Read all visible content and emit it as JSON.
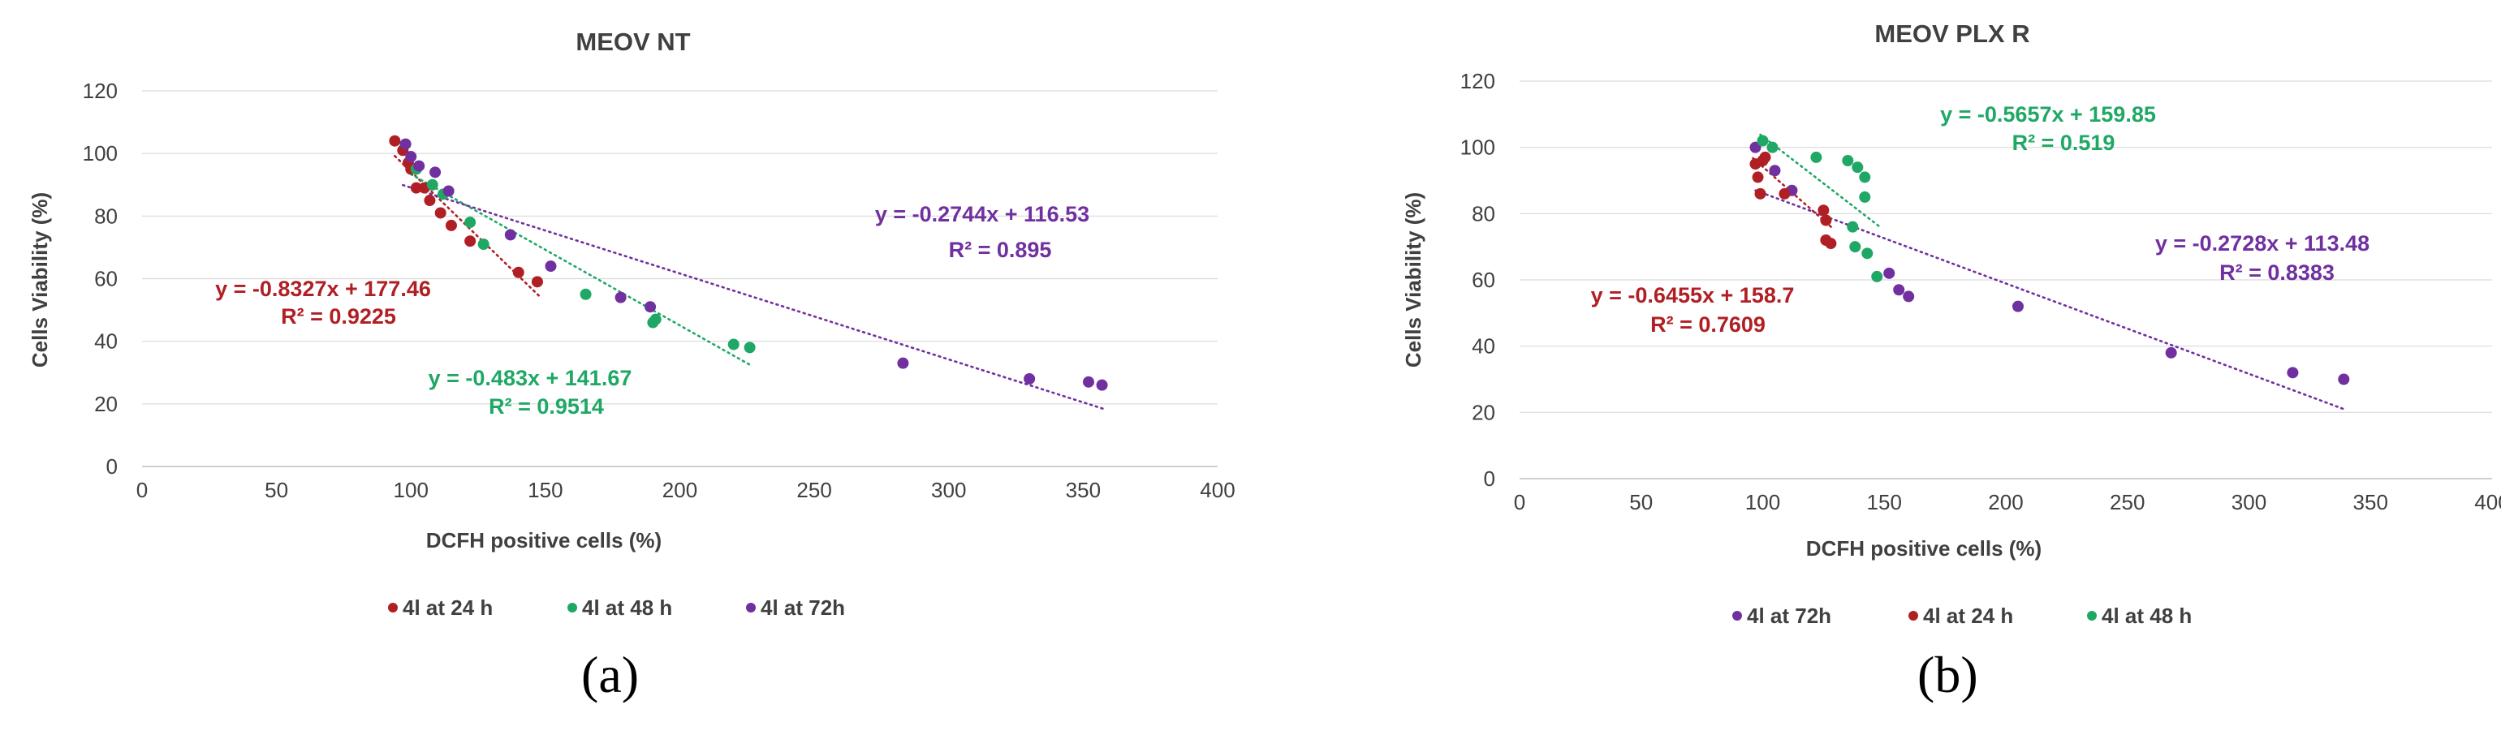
{
  "colors": {
    "red": "#B01F24",
    "green": "#1FA865",
    "purple": "#7030A0",
    "axis": "#BFBFBF",
    "grid": "#D9D9D9",
    "text": "#404040"
  },
  "chart_data": [
    {
      "type": "scatter",
      "title": "MEOV NT",
      "xlabel": "DCFH positive cells (%)",
      "ylabel": "Cells Viability (%)",
      "xlim": [
        0,
        400
      ],
      "ylim": [
        0,
        120
      ],
      "xticks": [
        "0",
        "50",
        "100",
        "150",
        "200",
        "250",
        "300",
        "350",
        "400"
      ],
      "yticks": [
        "0",
        "20",
        "40",
        "60",
        "80",
        "100",
        "120"
      ],
      "panel_label": "(a)",
      "series": [
        {
          "name": "4l at 24 h",
          "color_key": "red",
          "points": [
            [
              94,
              104
            ],
            [
              97,
              101
            ],
            [
              99,
              97
            ],
            [
              100,
              95
            ],
            [
              102,
              89
            ],
            [
              105,
              89
            ],
            [
              107,
              85
            ],
            [
              111,
              81
            ],
            [
              115,
              77
            ],
            [
              122,
              72
            ],
            [
              140,
              62
            ],
            [
              147,
              59
            ]
          ],
          "trendline": {
            "slope": -0.8327,
            "intercept": 177.46,
            "x_range": [
              94,
              148
            ]
          },
          "equation": "y = -0.8327x + 177.46",
          "r2": "R² = 0.9225"
        },
        {
          "name": "4l at 48 h",
          "color_key": "green",
          "points": [
            [
              102,
              95
            ],
            [
              108,
              90
            ],
            [
              112,
              87
            ],
            [
              122,
              78
            ],
            [
              127,
              71
            ],
            [
              165,
              55
            ],
            [
              190,
              46
            ],
            [
              191,
              47
            ],
            [
              220,
              39
            ],
            [
              226,
              38
            ]
          ],
          "trendline": {
            "slope": -0.483,
            "intercept": 141.67,
            "x_range": [
              100,
              227
            ]
          },
          "equation": "y = -0.483x + 141.67",
          "r2": "R² = 0.9514"
        },
        {
          "name": "4l at 72h",
          "color_key": "purple",
          "points": [
            [
              98,
              103
            ],
            [
              100,
              99
            ],
            [
              103,
              96
            ],
            [
              109,
              94
            ],
            [
              114,
              88
            ],
            [
              137,
              74
            ],
            [
              152,
              64
            ],
            [
              178,
              54
            ],
            [
              189,
              51
            ],
            [
              283,
              33
            ],
            [
              330,
              28
            ],
            [
              352,
              27
            ],
            [
              357,
              26
            ]
          ],
          "trendline": {
            "slope": -0.2744,
            "intercept": 116.53,
            "x_range": [
              97,
              358
            ]
          },
          "equation": "y = -0.2744x + 116.53",
          "r2": "R² = 0.895"
        }
      ]
    },
    {
      "type": "scatter",
      "title": "MEOV PLX R",
      "xlabel": "DCFH positive cells (%)",
      "ylabel": "Cells Viability (%)",
      "xlim": [
        0,
        400
      ],
      "ylim": [
        0,
        120
      ],
      "xticks": [
        "0",
        "50",
        "100",
        "150",
        "200",
        "250",
        "300",
        "350",
        "400"
      ],
      "yticks": [
        "0",
        "20",
        "40",
        "60",
        "80",
        "100",
        "120"
      ],
      "panel_label": "(b)",
      "series": [
        {
          "name": "4l at 72h",
          "color_key": "purple",
          "points": [
            [
              97,
              100
            ],
            [
              105,
              93
            ],
            [
              112,
              87
            ],
            [
              152,
              62
            ],
            [
              156,
              57
            ],
            [
              160,
              55
            ],
            [
              205,
              52
            ],
            [
              268,
              38
            ],
            [
              318,
              32
            ],
            [
              339,
              30
            ]
          ],
          "trendline": {
            "slope": -0.2728,
            "intercept": 113.48,
            "x_range": [
              97,
              340
            ]
          },
          "equation": "y = -0.2728x + 113.48",
          "r2": "R² = 0.8383"
        },
        {
          "name": "4l at 24 h",
          "color_key": "red",
          "points": [
            [
              97,
              95
            ],
            [
              98,
              91
            ],
            [
              100,
              96
            ],
            [
              99,
              86
            ],
            [
              101,
              97
            ],
            [
              109,
              86
            ],
            [
              125,
              81
            ],
            [
              126,
              78
            ],
            [
              126,
              72
            ],
            [
              128,
              71
            ]
          ],
          "trendline": {
            "slope": -0.6455,
            "intercept": 158.7,
            "x_range": [
              96,
              129
            ]
          },
          "equation": "y = -0.6455x + 158.7",
          "r2": "R² = 0.7609"
        },
        {
          "name": "4l at 48 h",
          "color_key": "green",
          "points": [
            [
              100,
              102
            ],
            [
              104,
              100
            ],
            [
              122,
              97
            ],
            [
              135,
              96
            ],
            [
              139,
              94
            ],
            [
              142,
              91
            ],
            [
              142,
              85
            ],
            [
              137,
              76
            ],
            [
              138,
              70
            ],
            [
              143,
              68
            ],
            [
              147,
              61
            ]
          ],
          "trendline": {
            "slope": -0.5657,
            "intercept": 159.85,
            "x_range": [
              99,
              148
            ]
          },
          "equation": "y = -0.5657x + 159.85",
          "r2": "R² = 0.519"
        }
      ]
    }
  ]
}
